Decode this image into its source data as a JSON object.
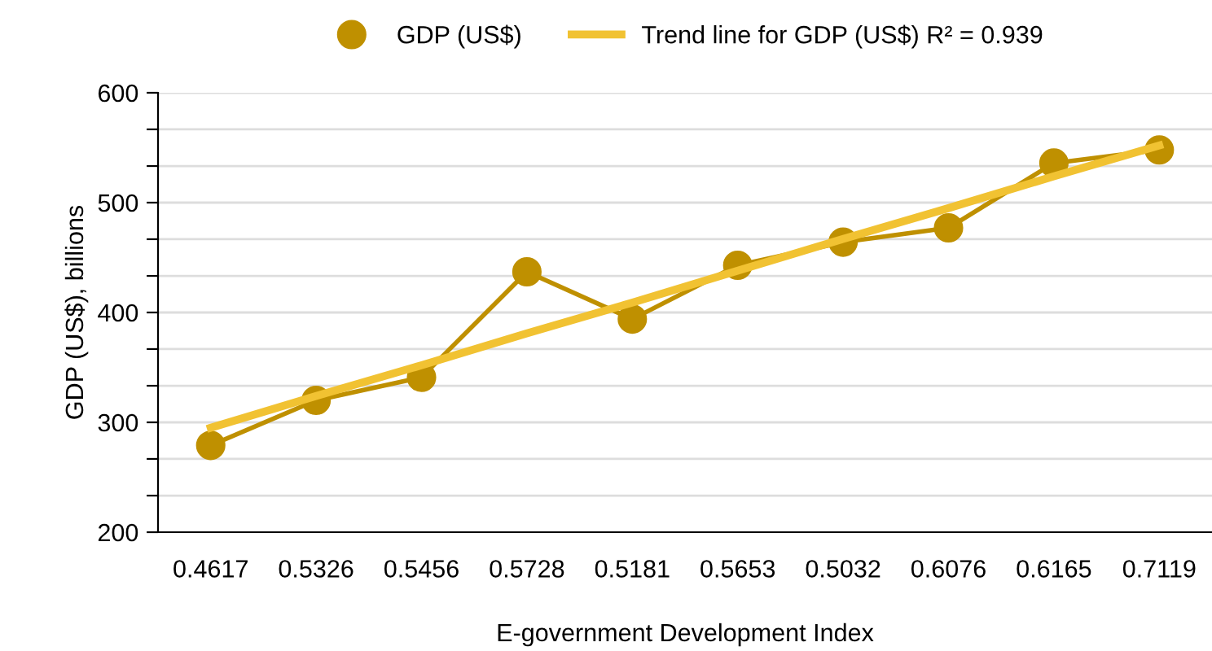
{
  "chart_data": {
    "type": "line",
    "xlabel": "E-government Development Index",
    "ylabel": "GDP (US$), billions",
    "categories": [
      "0.4617",
      "0.5326",
      "0.5456",
      "0.5728",
      "0.5181",
      "0.5653",
      "0.5032",
      "0.6076",
      "0.6165",
      "0.7119"
    ],
    "series": [
      {
        "name": "GDP (US$)",
        "color": "#bf9000",
        "values": [
          279,
          320,
          341,
          437,
          394,
          443,
          464,
          477,
          536,
          548
        ],
        "marker": "circle"
      },
      {
        "name": "Trend line for GDP (US$) R² = 0.939",
        "color": "#f1c232",
        "values": [
          295,
          324,
          352,
          381,
          409,
          438,
          467,
          495,
          524,
          552
        ],
        "marker": "none"
      }
    ],
    "ylim": [
      200,
      600
    ],
    "yticks": [
      200,
      {
        "value": 233.3,
        "label": null
      },
      {
        "value": 266.7,
        "label": null
      },
      300,
      {
        "value": 333.3,
        "label": null
      },
      {
        "value": 366.7,
        "label": null
      },
      400,
      {
        "value": 433.3,
        "label": null
      },
      {
        "value": 466.7,
        "label": null
      },
      500,
      {
        "value": 533.3,
        "label": null
      },
      {
        "value": 566.7,
        "label": null
      },
      600
    ],
    "grid": "y",
    "legend": "top"
  }
}
